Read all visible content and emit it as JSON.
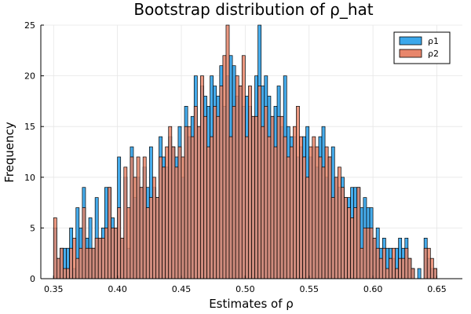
{
  "chart_data": {
    "type": "bar",
    "title": "Bootstrap distribution of ρ_hat",
    "xlabel": "Estimates of ρ",
    "ylabel": "Frequency",
    "xlim": [
      0.34,
      0.67
    ],
    "ylim": [
      0,
      25
    ],
    "xticks": [
      "0.35",
      "0.40",
      "0.45",
      "0.50",
      "0.55",
      "0.60",
      "0.65"
    ],
    "xtick_values": [
      0.35,
      0.4,
      0.45,
      0.5,
      0.55,
      0.6,
      0.65
    ],
    "yticks": [
      "0",
      "5",
      "10",
      "15",
      "20",
      "25"
    ],
    "ytick_values": [
      0,
      5,
      10,
      15,
      20,
      25
    ],
    "grid": true,
    "legend_position": "top-right",
    "bin_width": 0.0025,
    "series": [
      {
        "name": "ρ1",
        "color": "#3CA8EB",
        "bins": [
          [
            0.35,
            5
          ],
          [
            0.3525,
            2
          ],
          [
            0.355,
            3
          ],
          [
            0.3575,
            3
          ],
          [
            0.36,
            3
          ],
          [
            0.3625,
            5
          ],
          [
            0.365,
            1
          ],
          [
            0.3675,
            7
          ],
          [
            0.37,
            5
          ],
          [
            0.3725,
            9
          ],
          [
            0.375,
            4
          ],
          [
            0.3775,
            6
          ],
          [
            0.38,
            3
          ],
          [
            0.3825,
            8
          ],
          [
            0.385,
            4
          ],
          [
            0.3875,
            5
          ],
          [
            0.39,
            9
          ],
          [
            0.3925,
            9
          ],
          [
            0.395,
            6
          ],
          [
            0.3975,
            5
          ],
          [
            0.4,
            12
          ],
          [
            0.4025,
            4
          ],
          [
            0.405,
            10
          ],
          [
            0.4075,
            3
          ],
          [
            0.41,
            13
          ],
          [
            0.4125,
            8
          ],
          [
            0.415,
            10
          ],
          [
            0.4175,
            9
          ],
          [
            0.42,
            11
          ],
          [
            0.4225,
            9
          ],
          [
            0.425,
            13
          ],
          [
            0.4275,
            9
          ],
          [
            0.43,
            8
          ],
          [
            0.4325,
            14
          ],
          [
            0.435,
            12
          ],
          [
            0.4375,
            11
          ],
          [
            0.44,
            14
          ],
          [
            0.4425,
            13
          ],
          [
            0.445,
            12
          ],
          [
            0.4475,
            15
          ],
          [
            0.45,
            10
          ],
          [
            0.4525,
            17
          ],
          [
            0.455,
            14
          ],
          [
            0.4575,
            16
          ],
          [
            0.46,
            20
          ],
          [
            0.4625,
            15
          ],
          [
            0.465,
            19
          ],
          [
            0.4675,
            18
          ],
          [
            0.47,
            17
          ],
          [
            0.4725,
            20
          ],
          [
            0.475,
            19
          ],
          [
            0.4775,
            18
          ],
          [
            0.48,
            21
          ],
          [
            0.4825,
            17
          ],
          [
            0.485,
            20
          ],
          [
            0.4875,
            22
          ],
          [
            0.49,
            21
          ],
          [
            0.4925,
            18
          ],
          [
            0.495,
            19
          ],
          [
            0.4975,
            17
          ],
          [
            0.5,
            18
          ],
          [
            0.5025,
            17
          ],
          [
            0.505,
            16
          ],
          [
            0.5075,
            20
          ],
          [
            0.51,
            25
          ],
          [
            0.5125,
            19
          ],
          [
            0.515,
            20
          ],
          [
            0.5175,
            18
          ],
          [
            0.52,
            16
          ],
          [
            0.5225,
            17
          ],
          [
            0.525,
            19
          ],
          [
            0.5275,
            15
          ],
          [
            0.53,
            20
          ],
          [
            0.5325,
            15
          ],
          [
            0.535,
            14
          ],
          [
            0.5375,
            14
          ],
          [
            0.54,
            12
          ],
          [
            0.5425,
            13
          ],
          [
            0.545,
            14
          ],
          [
            0.5475,
            15
          ],
          [
            0.55,
            12
          ],
          [
            0.5525,
            13
          ],
          [
            0.555,
            11
          ],
          [
            0.5575,
            14
          ],
          [
            0.56,
            15
          ],
          [
            0.5625,
            10
          ],
          [
            0.565,
            12
          ],
          [
            0.5675,
            13
          ],
          [
            0.57,
            10
          ],
          [
            0.5725,
            9
          ],
          [
            0.575,
            10
          ],
          [
            0.5775,
            8
          ],
          [
            0.58,
            8
          ],
          [
            0.5825,
            9
          ],
          [
            0.585,
            9
          ],
          [
            0.5875,
            9
          ],
          [
            0.59,
            7
          ],
          [
            0.5925,
            8
          ],
          [
            0.595,
            7
          ],
          [
            0.5975,
            7
          ],
          [
            0.6,
            4
          ],
          [
            0.6025,
            5
          ],
          [
            0.605,
            3
          ],
          [
            0.6075,
            4
          ],
          [
            0.61,
            3
          ],
          [
            0.6125,
            3
          ],
          [
            0.615,
            2
          ],
          [
            0.6175,
            3
          ],
          [
            0.62,
            4
          ],
          [
            0.6225,
            3
          ],
          [
            0.625,
            4
          ],
          [
            0.6275,
            2
          ],
          [
            0.63,
            1
          ],
          [
            0.6325,
            0
          ],
          [
            0.635,
            1
          ],
          [
            0.6375,
            0
          ],
          [
            0.64,
            4
          ],
          [
            0.6425,
            2
          ],
          [
            0.645,
            1
          ],
          [
            0.6475,
            1
          ]
        ]
      },
      {
        "name": "ρ2",
        "color": "#E8866B",
        "bins": [
          [
            0.35,
            6
          ],
          [
            0.3525,
            2
          ],
          [
            0.355,
            3
          ],
          [
            0.3575,
            1
          ],
          [
            0.36,
            1
          ],
          [
            0.3625,
            3
          ],
          [
            0.365,
            4
          ],
          [
            0.3675,
            2
          ],
          [
            0.37,
            3
          ],
          [
            0.3725,
            7
          ],
          [
            0.375,
            3
          ],
          [
            0.3775,
            3
          ],
          [
            0.38,
            3
          ],
          [
            0.3825,
            4
          ],
          [
            0.385,
            4
          ],
          [
            0.3875,
            4
          ],
          [
            0.39,
            5
          ],
          [
            0.3925,
            9
          ],
          [
            0.395,
            5
          ],
          [
            0.3975,
            5
          ],
          [
            0.4,
            7
          ],
          [
            0.4025,
            4
          ],
          [
            0.405,
            11
          ],
          [
            0.4075,
            7
          ],
          [
            0.41,
            12
          ],
          [
            0.4125,
            10
          ],
          [
            0.415,
            12
          ],
          [
            0.4175,
            9
          ],
          [
            0.42,
            12
          ],
          [
            0.4225,
            7
          ],
          [
            0.425,
            8
          ],
          [
            0.4275,
            10
          ],
          [
            0.43,
            8
          ],
          [
            0.4325,
            12
          ],
          [
            0.435,
            11
          ],
          [
            0.4375,
            13
          ],
          [
            0.44,
            15
          ],
          [
            0.4425,
            13
          ],
          [
            0.445,
            11
          ],
          [
            0.4475,
            13
          ],
          [
            0.45,
            12
          ],
          [
            0.4525,
            15
          ],
          [
            0.455,
            15
          ],
          [
            0.4575,
            14
          ],
          [
            0.46,
            17
          ],
          [
            0.4625,
            15
          ],
          [
            0.465,
            20
          ],
          [
            0.4675,
            16
          ],
          [
            0.47,
            13
          ],
          [
            0.4725,
            14
          ],
          [
            0.475,
            17
          ],
          [
            0.4775,
            16
          ],
          [
            0.48,
            19
          ],
          [
            0.4825,
            22
          ],
          [
            0.485,
            25
          ],
          [
            0.4875,
            14
          ],
          [
            0.49,
            17
          ],
          [
            0.4925,
            20
          ],
          [
            0.495,
            19
          ],
          [
            0.4975,
            22
          ],
          [
            0.5,
            14
          ],
          [
            0.5025,
            19
          ],
          [
            0.505,
            16
          ],
          [
            0.5075,
            16
          ],
          [
            0.51,
            19
          ],
          [
            0.5125,
            15
          ],
          [
            0.515,
            17
          ],
          [
            0.5175,
            14
          ],
          [
            0.52,
            16
          ],
          [
            0.5225,
            13
          ],
          [
            0.525,
            16
          ],
          [
            0.5275,
            16
          ],
          [
            0.53,
            14
          ],
          [
            0.5325,
            12
          ],
          [
            0.535,
            13
          ],
          [
            0.5375,
            15
          ],
          [
            0.54,
            17
          ],
          [
            0.5425,
            14
          ],
          [
            0.545,
            12
          ],
          [
            0.5475,
            10
          ],
          [
            0.55,
            13
          ],
          [
            0.5525,
            14
          ],
          [
            0.555,
            13
          ],
          [
            0.5575,
            12
          ],
          [
            0.56,
            11
          ],
          [
            0.5625,
            13
          ],
          [
            0.565,
            12
          ],
          [
            0.5675,
            8
          ],
          [
            0.57,
            10
          ],
          [
            0.5725,
            11
          ],
          [
            0.575,
            9
          ],
          [
            0.5775,
            8
          ],
          [
            0.58,
            7
          ],
          [
            0.5825,
            6
          ],
          [
            0.585,
            7
          ],
          [
            0.5875,
            9
          ],
          [
            0.59,
            3
          ],
          [
            0.5925,
            5
          ],
          [
            0.595,
            5
          ],
          [
            0.5975,
            5
          ],
          [
            0.6,
            4
          ],
          [
            0.6025,
            3
          ],
          [
            0.605,
            2
          ],
          [
            0.6075,
            3
          ],
          [
            0.61,
            1
          ],
          [
            0.6125,
            2
          ],
          [
            0.615,
            3
          ],
          [
            0.6175,
            1
          ],
          [
            0.62,
            2
          ],
          [
            0.6225,
            2
          ],
          [
            0.625,
            3
          ],
          [
            0.6275,
            2
          ],
          [
            0.63,
            1
          ],
          [
            0.6325,
            0
          ],
          [
            0.635,
            0
          ],
          [
            0.6375,
            0
          ],
          [
            0.64,
            3
          ],
          [
            0.6425,
            3
          ],
          [
            0.645,
            2
          ],
          [
            0.6475,
            1
          ]
        ]
      }
    ]
  }
}
